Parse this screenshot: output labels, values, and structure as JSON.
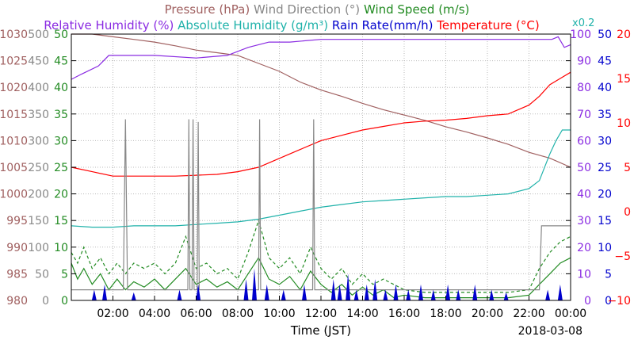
{
  "chart_data": {
    "type": "line",
    "header": {
      "line1": [
        {
          "key": "pressure",
          "label": "Pressure (hPa)",
          "color": "#a06060"
        },
        {
          "key": "wind_dir",
          "label": "Wind Direction (°)",
          "color": "#888888"
        },
        {
          "key": "wind_speed",
          "label": "Wind Speed (m/s)",
          "color": "#228b22"
        }
      ],
      "line2": [
        {
          "key": "rh",
          "label": "Relative Humidity (%)",
          "color": "#8a2be2"
        },
        {
          "key": "ah",
          "label": "Absolute Humidity (g/m³)",
          "color": "#20b2aa"
        },
        {
          "key": "rain",
          "label": "Rain Rate(mm/h)",
          "color": "#0000cd"
        },
        {
          "key": "temp",
          "label": "Temperature (°C)",
          "color": "#ff0000"
        }
      ],
      "ah_scale_note": "x0.2"
    },
    "xlabel": "Time (JST)",
    "date_label": "2018-03-08",
    "x_range_hours": [
      0,
      24
    ],
    "x_ticks": [
      "02:00",
      "04:00",
      "06:00",
      "08:00",
      "10:00",
      "12:00",
      "14:00",
      "16:00",
      "18:00",
      "20:00",
      "22:00",
      "00:00"
    ],
    "left_axes": [
      {
        "key": "pressure",
        "color": "#a06060",
        "ticks": [
          "1030",
          "1025",
          "1020",
          "1015",
          "1010",
          "1005",
          "1000",
          "995",
          "990",
          "985",
          "980"
        ],
        "range": [
          980,
          1030
        ]
      },
      {
        "key": "wind_dir",
        "color": "#888888",
        "ticks": [
          "500",
          "450",
          "400",
          "350",
          "300",
          "250",
          "200",
          "150",
          "100",
          "50",
          "0"
        ],
        "range": [
          0,
          500
        ]
      },
      {
        "key": "wind_speed",
        "color": "#228b22",
        "ticks": [
          "50",
          "45",
          "40",
          "35",
          "30",
          "25",
          "20",
          "15",
          "10",
          "5",
          "0"
        ],
        "range": [
          0,
          50
        ]
      }
    ],
    "right_axes": [
      {
        "key": "rh",
        "color": "#8a2be2",
        "ticks": [
          "100",
          "90",
          "80",
          "70",
          "60",
          "50",
          "40",
          "30",
          "20",
          "10",
          "0"
        ],
        "range": [
          0,
          100
        ]
      },
      {
        "key": "rain",
        "color": "#0000cd",
        "ticks": [
          "50",
          "45",
          "40",
          "35",
          "30",
          "25",
          "20",
          "15",
          "10",
          "5",
          "0"
        ],
        "range": [
          0,
          50
        ]
      },
      {
        "key": "temp",
        "color": "#ff0000",
        "ticks": [
          "20",
          "15",
          "10",
          "5",
          "0",
          "−5",
          "−10"
        ],
        "range": [
          -10,
          20
        ]
      }
    ],
    "series": [
      {
        "key": "pressure",
        "color": "#a06060",
        "axis": "pressure",
        "points": [
          [
            0,
            1030
          ],
          [
            1,
            1030
          ],
          [
            2,
            1029.5
          ],
          [
            3,
            1029
          ],
          [
            4,
            1028.5
          ],
          [
            5,
            1027.8
          ],
          [
            6,
            1027
          ],
          [
            7,
            1026.5
          ],
          [
            8,
            1026
          ],
          [
            9,
            1024.5
          ],
          [
            10,
            1023
          ],
          [
            11,
            1021
          ],
          [
            12,
            1019.5
          ],
          [
            13,
            1018.3
          ],
          [
            14,
            1017
          ],
          [
            15,
            1015.8
          ],
          [
            16,
            1014.8
          ],
          [
            17,
            1013.8
          ],
          [
            18,
            1012.6
          ],
          [
            19,
            1011.6
          ],
          [
            20,
            1010.5
          ],
          [
            21,
            1009.3
          ],
          [
            22,
            1007.8
          ],
          [
            23,
            1006.7
          ],
          [
            24,
            1005
          ]
        ]
      },
      {
        "key": "rh",
        "color": "#8a2be2",
        "axis": "rh",
        "points": [
          [
            0,
            83
          ],
          [
            0.5,
            85
          ],
          [
            1.3,
            88
          ],
          [
            1.8,
            92
          ],
          [
            4,
            92
          ],
          [
            6,
            91
          ],
          [
            7.5,
            92
          ],
          [
            8.5,
            95
          ],
          [
            9.5,
            97
          ],
          [
            10.5,
            97
          ],
          [
            12,
            98
          ],
          [
            14,
            98
          ],
          [
            16,
            98
          ],
          [
            18,
            98
          ],
          [
            20,
            98
          ],
          [
            22,
            98
          ],
          [
            23.1,
            98
          ],
          [
            23.4,
            99
          ],
          [
            23.7,
            95
          ],
          [
            24,
            96
          ]
        ]
      },
      {
        "key": "ah",
        "color": "#20b2aa",
        "axis": "rh",
        "points": [
          [
            0,
            28
          ],
          [
            1,
            27.5
          ],
          [
            2,
            27.5
          ],
          [
            3,
            28
          ],
          [
            4,
            28
          ],
          [
            5,
            28
          ],
          [
            6,
            28.5
          ],
          [
            7,
            29
          ],
          [
            8,
            29.5
          ],
          [
            9,
            30.5
          ],
          [
            10,
            32
          ],
          [
            11,
            33.5
          ],
          [
            12,
            35
          ],
          [
            13,
            36
          ],
          [
            14,
            37
          ],
          [
            15,
            37.5
          ],
          [
            16,
            38
          ],
          [
            17,
            38.5
          ],
          [
            18,
            39
          ],
          [
            19,
            39
          ],
          [
            20,
            39.5
          ],
          [
            21,
            40
          ],
          [
            22,
            42
          ],
          [
            22.5,
            45
          ],
          [
            23,
            55
          ],
          [
            23.3,
            60
          ],
          [
            23.6,
            64
          ],
          [
            24,
            64
          ]
        ]
      },
      {
        "key": "temp",
        "color": "#ff0000",
        "axis": "temp",
        "points": [
          [
            0,
            5
          ],
          [
            1,
            4.5
          ],
          [
            2,
            4
          ],
          [
            3,
            4
          ],
          [
            4,
            4
          ],
          [
            5,
            4
          ],
          [
            6,
            4.1
          ],
          [
            7,
            4.2
          ],
          [
            8,
            4.5
          ],
          [
            9,
            5
          ],
          [
            10,
            6
          ],
          [
            11,
            7
          ],
          [
            12,
            8
          ],
          [
            13,
            8.6
          ],
          [
            14,
            9.2
          ],
          [
            15,
            9.6
          ],
          [
            16,
            10
          ],
          [
            17,
            10.2
          ],
          [
            18,
            10.3
          ],
          [
            19,
            10.5
          ],
          [
            20,
            10.8
          ],
          [
            21,
            11
          ],
          [
            22,
            12
          ],
          [
            22.5,
            13
          ],
          [
            23,
            14.3
          ],
          [
            23.5,
            15
          ],
          [
            24,
            15.7
          ]
        ]
      },
      {
        "key": "wind_speed",
        "color": "#228b22",
        "axis": "wind_speed",
        "points": [
          [
            0,
            7
          ],
          [
            0.3,
            4
          ],
          [
            0.6,
            6
          ],
          [
            1,
            3
          ],
          [
            1.4,
            5
          ],
          [
            1.8,
            2
          ],
          [
            2.2,
            4
          ],
          [
            2.6,
            2
          ],
          [
            3,
            3.5
          ],
          [
            3.5,
            2.5
          ],
          [
            4,
            4
          ],
          [
            4.5,
            2
          ],
          [
            5,
            4
          ],
          [
            5.5,
            6
          ],
          [
            6,
            3
          ],
          [
            6.5,
            4
          ],
          [
            7,
            2.5
          ],
          [
            7.5,
            3.5
          ],
          [
            8,
            2
          ],
          [
            8.5,
            5
          ],
          [
            9,
            8
          ],
          [
            9.5,
            4
          ],
          [
            10,
            3
          ],
          [
            10.5,
            4.5
          ],
          [
            11,
            2
          ],
          [
            11.5,
            5.5
          ],
          [
            12,
            3
          ],
          [
            12.5,
            1.5
          ],
          [
            13,
            3
          ],
          [
            13.5,
            1
          ],
          [
            14,
            2.5
          ],
          [
            14.5,
            1
          ],
          [
            15,
            2
          ],
          [
            15.5,
            0.5
          ],
          [
            16,
            1
          ],
          [
            17,
            0.5
          ],
          [
            18,
            0.5
          ],
          [
            19,
            0.5
          ],
          [
            20,
            0.5
          ],
          [
            21,
            0.5
          ],
          [
            22,
            1
          ],
          [
            22.5,
            3
          ],
          [
            23,
            5
          ],
          [
            23.5,
            7
          ],
          [
            24,
            8
          ]
        ]
      },
      {
        "key": "wind_speed_gust",
        "color": "#228b22",
        "axis": "wind_speed",
        "dashed": true,
        "points": [
          [
            0,
            9
          ],
          [
            0.3,
            7
          ],
          [
            0.6,
            10
          ],
          [
            1,
            6
          ],
          [
            1.4,
            8
          ],
          [
            1.8,
            5
          ],
          [
            2.2,
            7
          ],
          [
            2.6,
            5
          ],
          [
            3,
            7
          ],
          [
            3.5,
            6
          ],
          [
            4,
            7
          ],
          [
            4.5,
            5
          ],
          [
            5,
            7
          ],
          [
            5.5,
            12
          ],
          [
            6,
            6
          ],
          [
            6.5,
            7
          ],
          [
            7,
            5
          ],
          [
            7.5,
            6
          ],
          [
            8,
            4
          ],
          [
            8.5,
            9
          ],
          [
            9,
            15
          ],
          [
            9.5,
            8
          ],
          [
            10,
            6
          ],
          [
            10.5,
            8
          ],
          [
            11,
            5
          ],
          [
            11.5,
            10
          ],
          [
            12,
            6
          ],
          [
            12.5,
            4
          ],
          [
            13,
            6
          ],
          [
            13.5,
            3
          ],
          [
            14,
            5
          ],
          [
            14.5,
            3
          ],
          [
            15,
            4
          ],
          [
            16,
            2
          ],
          [
            17,
            1.5
          ],
          [
            18,
            1.5
          ],
          [
            19,
            1.5
          ],
          [
            20,
            1.5
          ],
          [
            21,
            1.5
          ],
          [
            22,
            2
          ],
          [
            22.5,
            6
          ],
          [
            23,
            9
          ],
          [
            23.5,
            11
          ],
          [
            24,
            12
          ]
        ]
      },
      {
        "key": "wind_dir",
        "color": "#888888",
        "axis": "wind_dir",
        "points": [
          [
            0,
            20
          ],
          [
            2.5,
            20
          ],
          [
            2.6,
            340
          ],
          [
            2.7,
            20
          ],
          [
            5.6,
            20
          ],
          [
            5.65,
            340
          ],
          [
            5.7,
            20
          ],
          [
            5.8,
            20
          ],
          [
            5.85,
            340
          ],
          [
            5.9,
            20
          ],
          [
            6.05,
            20
          ],
          [
            6.1,
            335
          ],
          [
            6.15,
            20
          ],
          [
            9,
            20
          ],
          [
            9.05,
            340
          ],
          [
            9.1,
            20
          ],
          [
            11.6,
            20
          ],
          [
            11.65,
            340
          ],
          [
            11.7,
            20
          ],
          [
            22.5,
            20
          ],
          [
            22.6,
            140
          ],
          [
            24,
            140
          ]
        ]
      },
      {
        "key": "rain",
        "color": "#0000cd",
        "axis": "rain",
        "type": "spikes",
        "points": [
          [
            1.1,
            2
          ],
          [
            1.6,
            3
          ],
          [
            3.0,
            1.5
          ],
          [
            5.2,
            2
          ],
          [
            6.1,
            3
          ],
          [
            8.4,
            4
          ],
          [
            8.8,
            6
          ],
          [
            9.4,
            3
          ],
          [
            10.2,
            2
          ],
          [
            11.2,
            3
          ],
          [
            12.6,
            4
          ],
          [
            12.9,
            3
          ],
          [
            13.3,
            5
          ],
          [
            13.7,
            2
          ],
          [
            14.2,
            3
          ],
          [
            14.6,
            4
          ],
          [
            15.1,
            2
          ],
          [
            15.6,
            3
          ],
          [
            16.2,
            2
          ],
          [
            16.8,
            3
          ],
          [
            17.4,
            2
          ],
          [
            18.1,
            3
          ],
          [
            18.6,
            2
          ],
          [
            19.4,
            3
          ],
          [
            20.2,
            2
          ],
          [
            20.9,
            1.5
          ],
          [
            22.9,
            2
          ],
          [
            23.5,
            3
          ]
        ]
      }
    ]
  }
}
